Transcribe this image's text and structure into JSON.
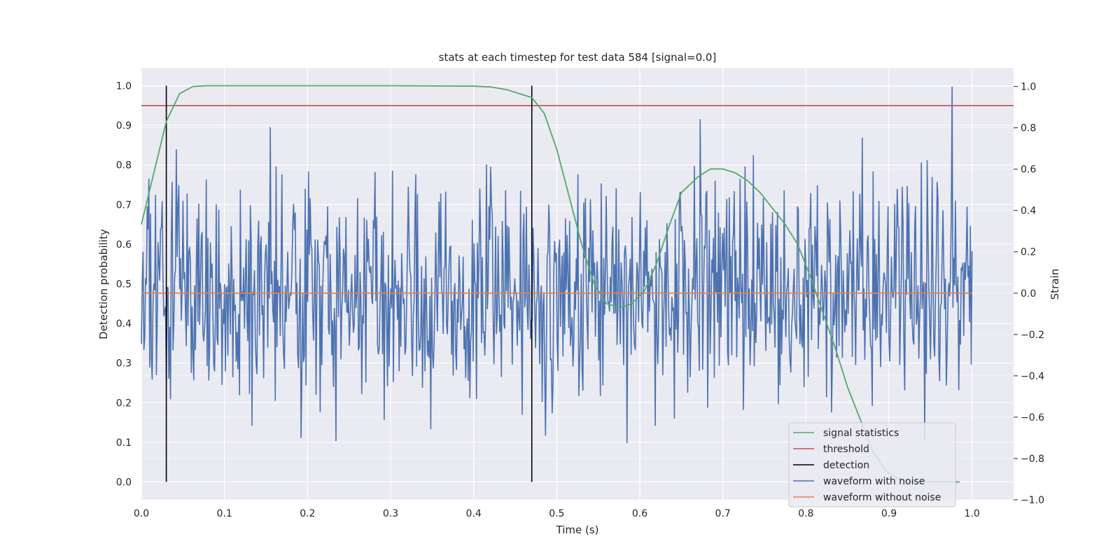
{
  "chart_data": {
    "type": "line",
    "title": "stats at each timestep for test data 584 [signal=0.0]",
    "xlabel": "Time (s)",
    "ylabel_left": "Detection probability",
    "ylabel_right": "Strain",
    "xlim": [
      0.0,
      1.05
    ],
    "ylim_left": [
      -0.045,
      1.045
    ],
    "ylim_right": [
      -1.0,
      1.09
    ],
    "x_ticks": [
      "0.0",
      "0.1",
      "0.2",
      "0.3",
      "0.4",
      "0.5",
      "0.6",
      "0.7",
      "0.8",
      "0.9",
      "1.0"
    ],
    "y_ticks_left": [
      "0.0",
      "0.1",
      "0.2",
      "0.3",
      "0.4",
      "0.5",
      "0.6",
      "0.7",
      "0.8",
      "0.9",
      "1.0"
    ],
    "y_ticks_right": [
      "−1.0",
      "−0.8",
      "−0.6",
      "−0.4",
      "−0.2",
      "0.0",
      "0.2",
      "0.4",
      "0.6",
      "0.8",
      "1.0"
    ],
    "grid": true,
    "legend_position": "lower-right",
    "colors": {
      "signal_statistics": "#55a868",
      "threshold": "#c44e52",
      "detection": "#000000",
      "waveform_with_noise": "#4c72b0",
      "waveform_without_noise": "#dd8452",
      "plot_background": "#eaeaf2",
      "grid": "#ffffff"
    },
    "series": [
      {
        "name": "signal statistics",
        "axis": "left",
        "x": [
          0.0,
          0.015,
          0.03,
          0.046,
          0.062,
          0.078,
          0.1,
          0.2,
          0.3,
          0.4,
          0.42,
          0.44,
          0.455,
          0.47,
          0.485,
          0.5,
          0.515,
          0.53,
          0.545,
          0.56,
          0.576,
          0.59,
          0.605,
          0.62,
          0.636,
          0.65,
          0.67,
          0.685,
          0.7,
          0.715,
          0.73,
          0.745,
          0.76,
          0.775,
          0.79,
          0.805,
          0.82,
          0.835,
          0.85,
          0.865,
          0.88,
          0.895,
          0.91,
          0.925,
          0.94,
          0.955,
          0.97,
          0.985
        ],
        "values": [
          0.65,
          0.78,
          0.91,
          0.98,
          0.998,
          1.0,
          1.0,
          1.0,
          1.0,
          0.999,
          0.997,
          0.99,
          0.98,
          0.97,
          0.93,
          0.84,
          0.72,
          0.6,
          0.5,
          0.45,
          0.44,
          0.45,
          0.48,
          0.55,
          0.65,
          0.73,
          0.77,
          0.79,
          0.79,
          0.78,
          0.76,
          0.73,
          0.69,
          0.65,
          0.6,
          0.52,
          0.43,
          0.34,
          0.24,
          0.16,
          0.08,
          0.03,
          0.01,
          0.0,
          0.0,
          0.0,
          0.0,
          0.0
        ]
      },
      {
        "name": "threshold",
        "axis": "left",
        "values": [
          0.95
        ]
      },
      {
        "name": "detection",
        "axis": "left",
        "x": [
          0.03,
          0.47
        ],
        "y_range": [
          0.0,
          1.0
        ]
      },
      {
        "name": "waveform with noise",
        "axis": "right",
        "x_range": [
          0.0,
          1.0
        ],
        "n_points": 1000,
        "y_min": -0.9,
        "y_max": 1.0,
        "notable_peak": {
          "x": 0.976,
          "y": 1.0
        }
      },
      {
        "name": "waveform without noise",
        "axis": "right",
        "values": [
          0.0
        ]
      }
    ],
    "legend": [
      "signal statistics",
      "threshold",
      "detection",
      "waveform with noise",
      "waveform without noise"
    ]
  }
}
